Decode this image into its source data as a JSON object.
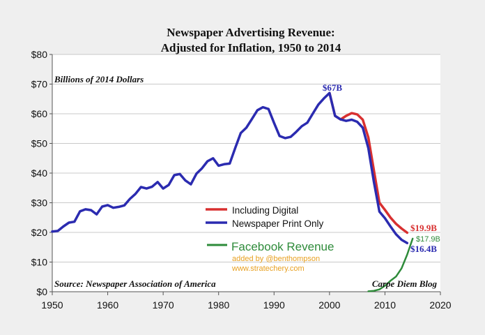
{
  "chart_data": {
    "type": "line",
    "title_line1": "Newspaper Advertising Revenue:",
    "title_line2": "Adjusted for Inflation, 1950 to 2014",
    "units_label": "Billions of 2014 Dollars",
    "source": "Source: Newspaper Association of America",
    "credit": "Carpe Diem Blog",
    "xlim": [
      1950,
      2020
    ],
    "ylim": [
      0,
      80
    ],
    "x_ticks": [
      1950,
      1960,
      1970,
      1980,
      1990,
      2000,
      2010,
      2020
    ],
    "y_ticks": [
      0,
      10,
      20,
      30,
      40,
      50,
      60,
      70,
      80
    ],
    "y_tick_labels": [
      "$0",
      "$10",
      "$20",
      "$30",
      "$40",
      "$50",
      "$60",
      "$70",
      "$80"
    ],
    "grid": true,
    "series": [
      {
        "name": "Newspaper Print Only",
        "color": "#2b2bb0",
        "x": [
          1950,
          1951,
          1952,
          1953,
          1954,
          1955,
          1956,
          1957,
          1958,
          1959,
          1960,
          1961,
          1962,
          1963,
          1964,
          1965,
          1966,
          1967,
          1968,
          1969,
          1970,
          1971,
          1972,
          1973,
          1974,
          1975,
          1976,
          1977,
          1978,
          1979,
          1980,
          1981,
          1982,
          1983,
          1984,
          1985,
          1986,
          1987,
          1988,
          1989,
          1990,
          1991,
          1992,
          1993,
          1994,
          1995,
          1996,
          1997,
          1998,
          1999,
          2000,
          2001,
          2002,
          2003,
          2004,
          2005,
          2006,
          2007,
          2008,
          2009,
          2010,
          2011,
          2012,
          2013,
          2014
        ],
        "values": [
          20.3,
          20.5,
          22.0,
          23.3,
          23.6,
          27.1,
          27.8,
          27.5,
          26.1,
          28.7,
          29.2,
          28.3,
          28.6,
          29.1,
          31.3,
          33.0,
          35.3,
          34.8,
          35.4,
          37.0,
          34.8,
          36.0,
          39.3,
          39.7,
          37.5,
          36.2,
          39.8,
          41.6,
          44.0,
          45.0,
          42.5,
          43.0,
          43.2,
          48.5,
          53.5,
          55.3,
          58.2,
          61.2,
          62.2,
          61.6,
          56.9,
          52.5,
          51.8,
          52.2,
          53.9,
          55.8,
          57.0,
          60.1,
          63.1,
          65.2,
          67.0,
          59.3,
          58.1,
          57.6,
          58.0,
          57.3,
          55.3,
          48.4,
          37.1,
          27.0,
          24.8,
          22.0,
          19.4,
          17.5,
          16.4
        ]
      },
      {
        "name": "Including Digital",
        "color": "#d83030",
        "x": [
          2000,
          2001,
          2002,
          2003,
          2004,
          2005,
          2006,
          2007,
          2008,
          2009,
          2010,
          2011,
          2012,
          2013,
          2014
        ],
        "values": [
          67.0,
          59.3,
          58.1,
          59.3,
          60.2,
          59.8,
          58.0,
          52.0,
          41.0,
          30.0,
          27.6,
          25.0,
          22.9,
          21.3,
          19.9
        ]
      },
      {
        "name": "Facebook Revenue",
        "color": "#2e8b3a",
        "x": [
          2007,
          2008,
          2009,
          2010,
          2011,
          2012,
          2013,
          2014,
          2015
        ],
        "values": [
          0.15,
          0.3,
          0.78,
          2.0,
          3.7,
          5.1,
          7.9,
          12.5,
          17.9
        ]
      }
    ],
    "legend": {
      "including_digital": "Including Digital",
      "print_only": "Newspaper Print Only",
      "facebook": "Facebook Revenue",
      "added_by": "added by @benthompson",
      "site": "www.stratechery.com"
    },
    "annotations": {
      "peak": "$67B",
      "digital_end": "$19.9B",
      "print_end": "$16.4B",
      "facebook_end": "$17.9B"
    }
  }
}
